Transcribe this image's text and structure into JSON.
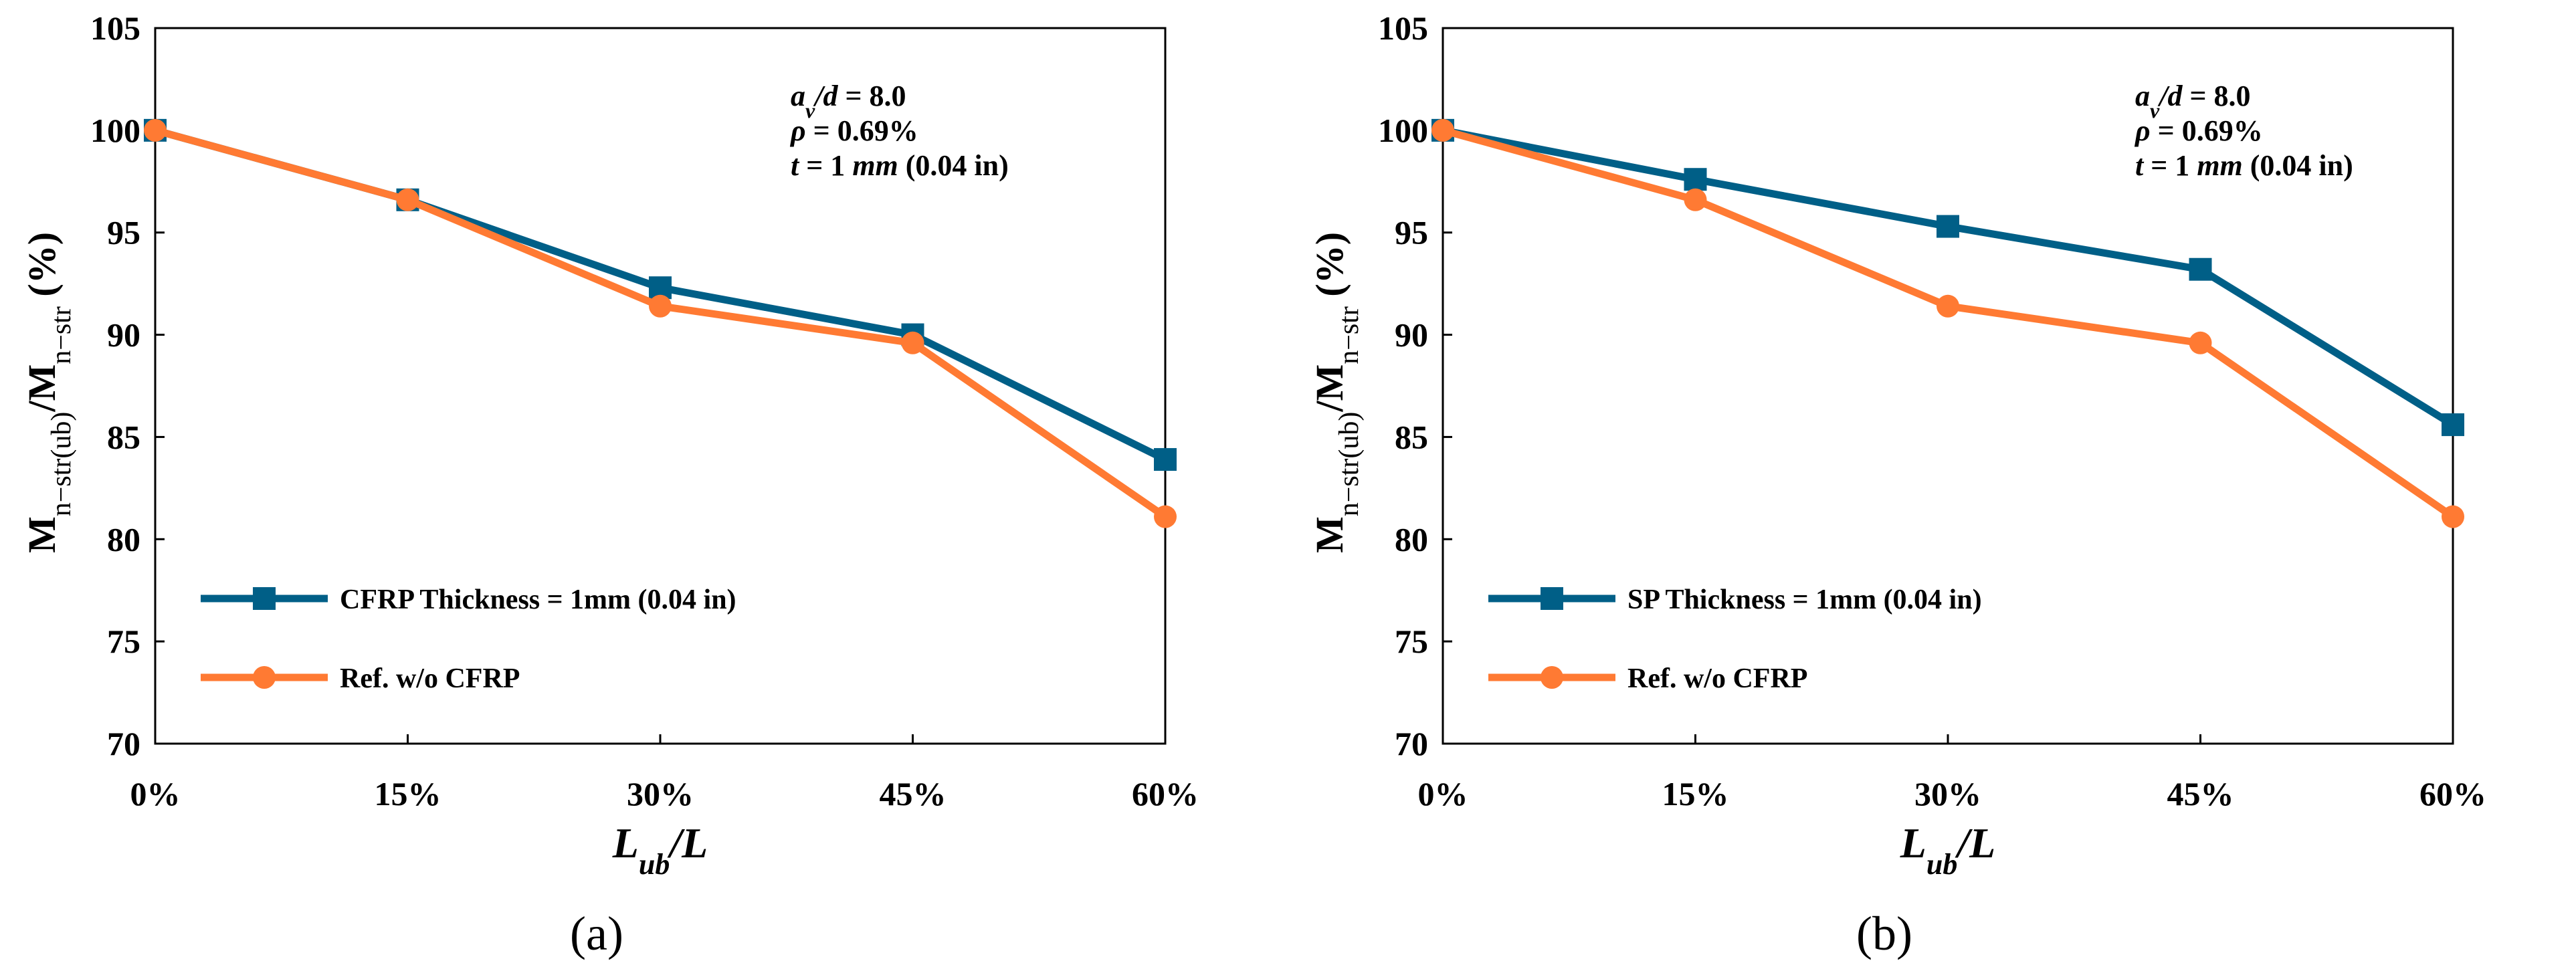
{
  "chart_data": [
    {
      "type": "line",
      "panel_label": "(a)",
      "categories": [
        "0%",
        "15%",
        "30%",
        "45%",
        "60%"
      ],
      "series": [
        {
          "name": "CFRP Thickness = 1mm (0.04 in)",
          "marker": "square",
          "color": "#005F87",
          "values": [
            100,
            96.6,
            92.3,
            90.0,
            83.9
          ]
        },
        {
          "name": "Ref. w/o CFRP",
          "marker": "circle",
          "color": "#FF7A33",
          "values": [
            100,
            96.6,
            91.4,
            89.6,
            81.1
          ]
        }
      ],
      "xlabel": "L_ub/L",
      "ylabel": "M_n−str(ub)/M_n−str (%)",
      "ylim": [
        70,
        105
      ],
      "yticks": [
        70,
        75,
        80,
        85,
        90,
        95,
        100,
        105
      ],
      "annotations": [
        "a_v/d = 8.0",
        "ρ = 0.69%",
        "t = 1 mm (0.04 in)"
      ],
      "legend_position": "bottom-left",
      "grid": false
    },
    {
      "type": "line",
      "panel_label": "(b)",
      "categories": [
        "0%",
        "15%",
        "30%",
        "45%",
        "60%"
      ],
      "series": [
        {
          "name": "SP Thickness = 1mm (0.04 in)",
          "marker": "square",
          "color": "#005F87",
          "values": [
            100,
            97.6,
            95.3,
            93.2,
            85.6
          ]
        },
        {
          "name": "Ref. w/o CFRP",
          "marker": "circle",
          "color": "#FF7A33",
          "values": [
            100,
            96.6,
            91.4,
            89.6,
            81.1
          ]
        }
      ],
      "xlabel": "L_ub/L",
      "ylabel": "M_n−str(ub)/M_n−str (%)",
      "ylim": [
        70,
        105
      ],
      "yticks": [
        70,
        75,
        80,
        85,
        90,
        95,
        100,
        105
      ],
      "annotations": [
        "a_v/d = 8.0",
        "ρ = 0.69%",
        "t = 1 mm (0.04 in)"
      ],
      "legend_position": "bottom-left",
      "grid": false
    }
  ]
}
